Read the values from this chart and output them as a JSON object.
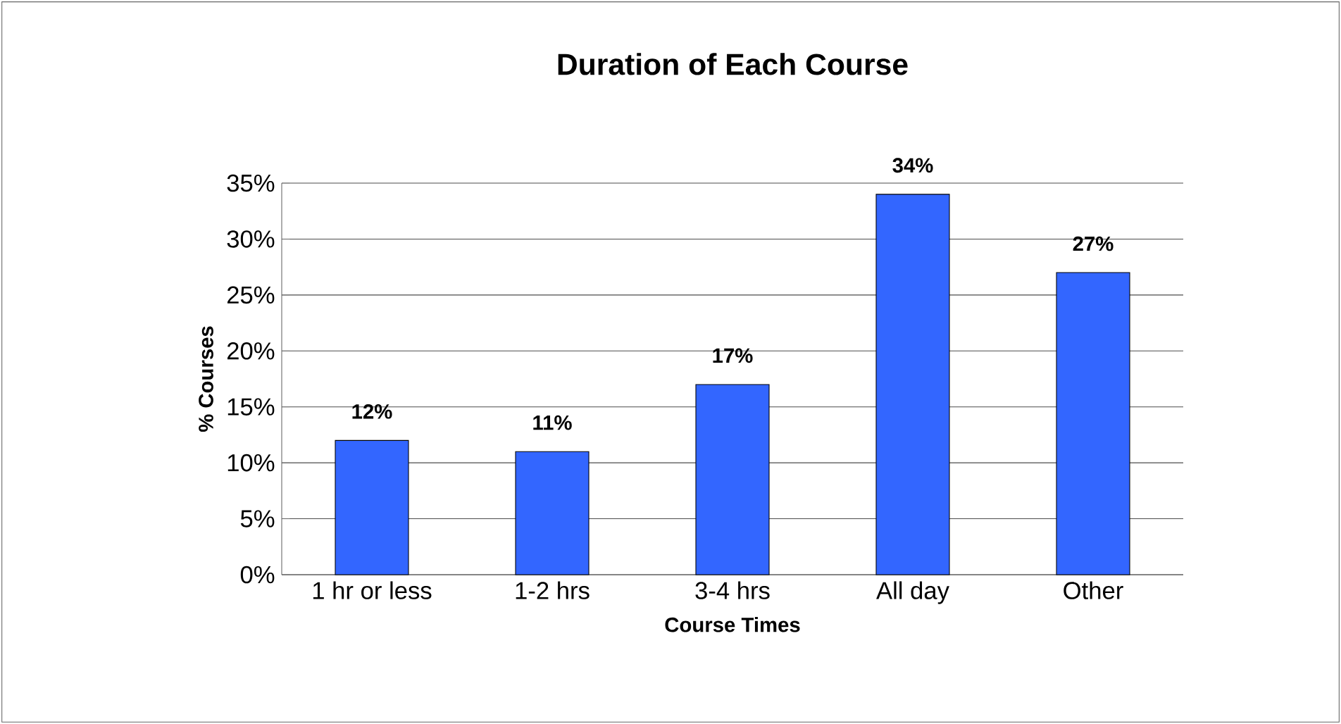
{
  "chart_data": {
    "type": "bar",
    "title": "Duration of Each Course",
    "xlabel": "Course Times",
    "ylabel": "% Courses",
    "categories": [
      "1 hr or less",
      "1-2 hrs",
      "3-4 hrs",
      "All day",
      "Other"
    ],
    "values": [
      12,
      11,
      17,
      34,
      27
    ],
    "value_labels": [
      "12%",
      "11%",
      "17%",
      "34%",
      "27%"
    ],
    "color": "#3366ff",
    "ylim": [
      0,
      35
    ],
    "yticks": [
      {
        "value": 0,
        "label": "0%"
      },
      {
        "value": 5,
        "label": "5%"
      },
      {
        "value": 10,
        "label": "10%"
      },
      {
        "value": 15,
        "label": "15%"
      },
      {
        "value": 20,
        "label": "20%"
      },
      {
        "value": 25,
        "label": "25%"
      },
      {
        "value": 30,
        "label": "30%"
      },
      {
        "value": 35,
        "label": "35%"
      }
    ],
    "grid": "y"
  }
}
